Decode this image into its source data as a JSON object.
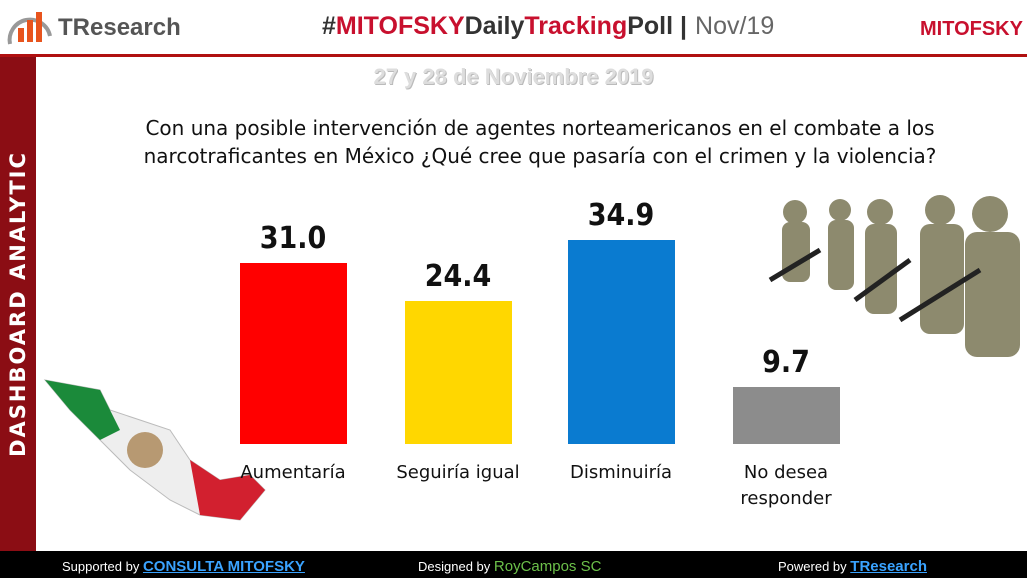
{
  "header": {
    "logo": "TResearch",
    "hash": "#",
    "brand": "MITOFSKY",
    "daily": "Daily",
    "tracking": "Tracking",
    "poll": "Poll",
    "separator": "|",
    "month": "Nov/19",
    "right_logo": "MITOFSKY"
  },
  "sidebar": "DASHBOARD ANALYTIC",
  "date": "27 y 28 de Noviembre 2019",
  "chart_data": {
    "type": "bar",
    "title": "Con una posible intervención de agentes norteamericanos en el combate a los narcotraficantes en México ¿Qué cree que pasaría con el crimen y la violencia?",
    "categories": [
      "Aumentaría",
      "Seguiría igual",
      "Disminuiría",
      "No desea responder"
    ],
    "values": [
      31.0,
      24.4,
      34.9,
      9.7
    ],
    "value_labels": [
      "31.0",
      "24.4",
      "34.9",
      "9.7"
    ],
    "colors": [
      "#ff0000",
      "#ffd700",
      "#0a7bd0",
      "#8c8c8c"
    ]
  },
  "footer": {
    "supported": "Supported by",
    "supported_link": "CONSULTA MITOFSKY",
    "designed": "Designed by",
    "designer": "RoyCampos SC",
    "powered": "Powered by",
    "powered_link": "TResearch"
  }
}
